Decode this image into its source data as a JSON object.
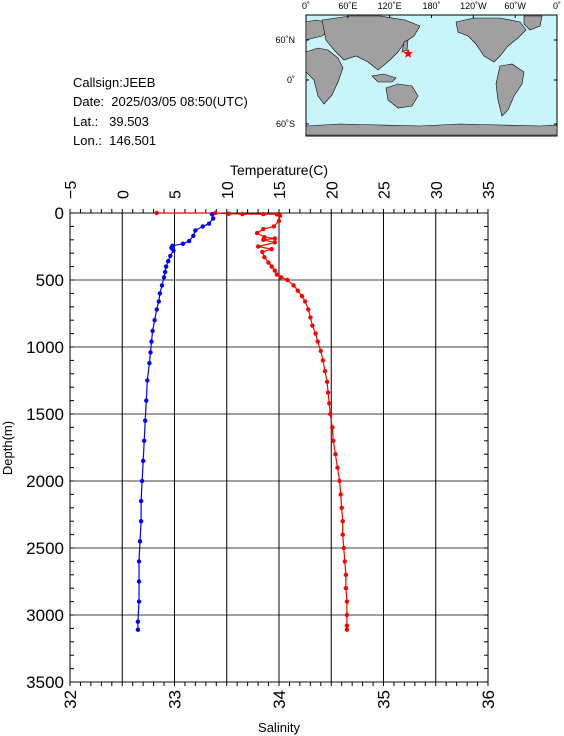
{
  "header": {
    "callsign": "Callsign:JEEB",
    "date": "Date:  2025/03/05 08:50(UTC)",
    "lat": "Lat.:   39.503",
    "lon": "Lon.:  146.501"
  },
  "map": {
    "lon_labels": [
      "0˚",
      "60˚E",
      "120˚E",
      "180˚",
      "120˚W",
      "60˚W",
      "0˚"
    ],
    "lat_labels": [
      "60˚N",
      "0˚",
      "60˚S"
    ],
    "station_marker": {
      "lon": 146.501,
      "lat": 39.503,
      "symbol": "star",
      "color": "#ff0000"
    },
    "ocean_color": "#c8f5fa",
    "land_color": "#a0a0a0"
  },
  "chart_data": {
    "type": "line",
    "ylabel": "Depth(m)",
    "y_ticks": [
      "0",
      "500",
      "1000",
      "1500",
      "2000",
      "2500",
      "3000",
      "3500"
    ],
    "ylim": [
      3500,
      0
    ],
    "temperature_axis": {
      "label": "Temperature(C)",
      "ticks": [
        "−5",
        "0",
        "5",
        "10",
        "15",
        "20",
        "25",
        "30",
        "35"
      ],
      "range": [
        -5,
        35
      ]
    },
    "salinity_axis": {
      "label": "Salinity",
      "ticks": [
        "32",
        "33",
        "34",
        "35",
        "36"
      ],
      "range": [
        32,
        36
      ]
    },
    "grid": true,
    "series": [
      {
        "color": "#ff0000",
        "axis": "temperature",
        "points": [
          [
            3.3,
            0
          ],
          [
            8.9,
            0
          ],
          [
            10.2,
            5
          ],
          [
            11.5,
            8
          ],
          [
            13.5,
            8
          ],
          [
            14.8,
            10
          ],
          [
            15.1,
            20
          ],
          [
            15.0,
            60
          ],
          [
            14.5,
            100
          ],
          [
            13.5,
            120
          ],
          [
            12.9,
            150
          ],
          [
            13.6,
            180
          ],
          [
            14.6,
            190
          ],
          [
            13.5,
            200
          ],
          [
            14.6,
            220
          ],
          [
            13.0,
            250
          ],
          [
            14.3,
            270
          ],
          [
            13.4,
            290
          ],
          [
            13.6,
            330
          ],
          [
            14.0,
            370
          ],
          [
            14.3,
            400
          ],
          [
            14.6,
            430
          ],
          [
            14.8,
            460
          ],
          [
            15.2,
            480
          ],
          [
            15.8,
            500
          ],
          [
            16.4,
            540
          ],
          [
            16.8,
            580
          ],
          [
            17.2,
            620
          ],
          [
            17.5,
            660
          ],
          [
            17.8,
            720
          ],
          [
            18.0,
            780
          ],
          [
            18.2,
            840
          ],
          [
            18.5,
            900
          ],
          [
            18.7,
            960
          ],
          [
            19.0,
            1030
          ],
          [
            19.2,
            1100
          ],
          [
            19.4,
            1180
          ],
          [
            19.6,
            1260
          ],
          [
            19.7,
            1340
          ],
          [
            19.8,
            1420
          ],
          [
            19.9,
            1500
          ],
          [
            20.1,
            1600
          ],
          [
            20.2,
            1700
          ],
          [
            20.4,
            1800
          ],
          [
            20.6,
            1900
          ],
          [
            20.8,
            2000
          ],
          [
            20.9,
            2100
          ],
          [
            21.0,
            2200
          ],
          [
            21.1,
            2300
          ],
          [
            21.1,
            2400
          ],
          [
            21.2,
            2500
          ],
          [
            21.3,
            2600
          ],
          [
            21.4,
            2700
          ],
          [
            21.4,
            2800
          ],
          [
            21.5,
            2900
          ],
          [
            21.5,
            3000
          ],
          [
            21.5,
            3080
          ],
          [
            21.5,
            3110
          ]
        ]
      },
      {
        "color": "#0000ff",
        "axis": "salinity",
        "points": [
          [
            33.36,
            10
          ],
          [
            33.37,
            40
          ],
          [
            33.33,
            80
          ],
          [
            33.27,
            100
          ],
          [
            33.2,
            130
          ],
          [
            33.18,
            170
          ],
          [
            33.14,
            210
          ],
          [
            33.08,
            230
          ],
          [
            32.98,
            245
          ],
          [
            32.97,
            260
          ],
          [
            32.99,
            280
          ],
          [
            32.96,
            320
          ],
          [
            32.94,
            360
          ],
          [
            32.92,
            400
          ],
          [
            32.91,
            440
          ],
          [
            32.9,
            480
          ],
          [
            32.88,
            540
          ],
          [
            32.86,
            600
          ],
          [
            32.85,
            660
          ],
          [
            32.83,
            720
          ],
          [
            32.81,
            800
          ],
          [
            32.79,
            880
          ],
          [
            32.78,
            960
          ],
          [
            32.77,
            1040
          ],
          [
            32.76,
            1120
          ],
          [
            32.74,
            1250
          ],
          [
            32.73,
            1400
          ],
          [
            32.72,
            1550
          ],
          [
            32.71,
            1700
          ],
          [
            32.7,
            1850
          ],
          [
            32.69,
            2000
          ],
          [
            32.68,
            2150
          ],
          [
            32.68,
            2300
          ],
          [
            32.67,
            2450
          ],
          [
            32.66,
            2600
          ],
          [
            32.66,
            2750
          ],
          [
            32.66,
            2900
          ],
          [
            32.65,
            3050
          ],
          [
            32.65,
            3110
          ]
        ]
      }
    ]
  }
}
